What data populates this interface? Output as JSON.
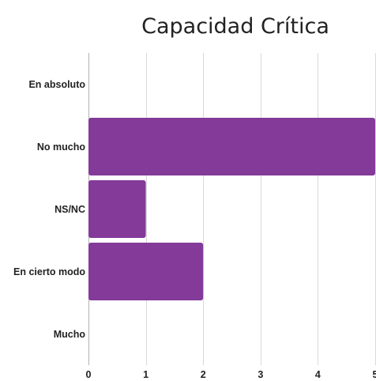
{
  "chart_data": {
    "type": "bar",
    "orientation": "horizontal",
    "title": "Capacidad Crítica",
    "categories": [
      "En absoluto",
      "No mucho",
      "NS/NC",
      "En cierto modo",
      "Mucho"
    ],
    "values": [
      0,
      5,
      1,
      2,
      0
    ],
    "xlim": [
      0,
      5
    ],
    "xticks": [
      "0",
      "1",
      "2",
      "3",
      "4",
      "5"
    ],
    "grid": true,
    "legend": "none",
    "color": "#833a98"
  }
}
